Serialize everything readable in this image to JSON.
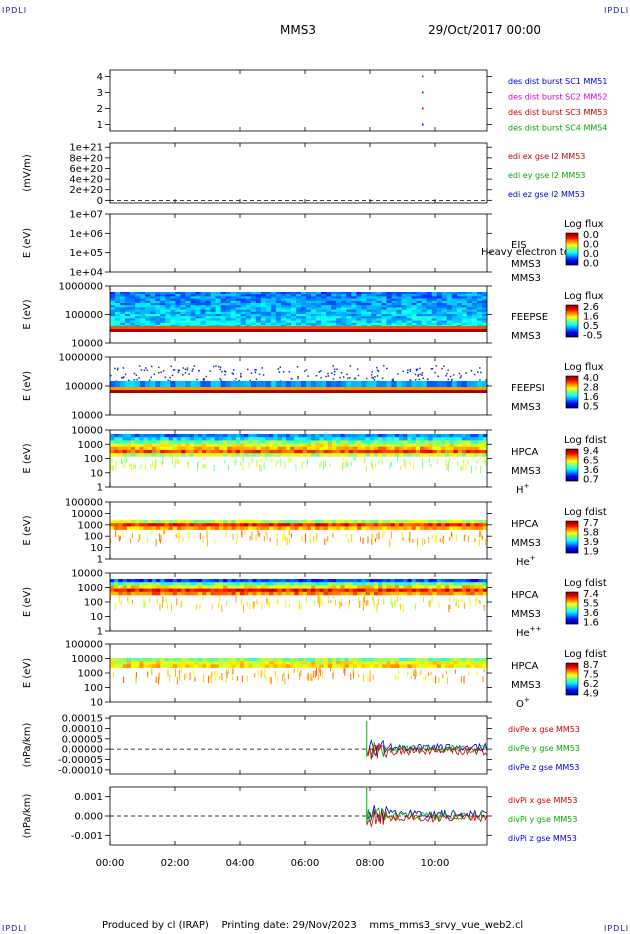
{
  "page": {
    "corner_label": "IPDLI",
    "title_left": "MMS3",
    "title_right": "29/Oct/2017 00:00",
    "footer_left": "Produced by cl (IRAP)",
    "footer_date": "Printing date: 29/Nov/2023",
    "footer_file": "mms_mms3_srvy_vue_web2.cl"
  },
  "time_axis": {
    "ticks": [
      {
        "hour": 0,
        "label": "00:00"
      },
      {
        "hour": 2,
        "label": "02:00"
      },
      {
        "hour": 4,
        "label": "04:00"
      },
      {
        "hour": 6,
        "label": "06:00"
      },
      {
        "hour": 8,
        "label": "08:00"
      },
      {
        "hour": 10,
        "label": "10:00"
      }
    ],
    "range_hours": [
      0,
      11.6
    ]
  },
  "chart_data": [
    {
      "type": "scatter",
      "panel": "burst",
      "y_ticks": [
        "4",
        "3",
        "2",
        "1"
      ],
      "y_values": [
        4,
        3,
        2,
        1
      ],
      "ylim": [
        0.6,
        4.4
      ],
      "legend": [
        {
          "text": "des dist burst SC1 MM51",
          "color": "#0000cc"
        },
        {
          "text": "des dist burst SC2 MM52",
          "color": "#cc00cc"
        },
        {
          "text": "des dist burst SC3 MM53",
          "color": "#cc0000"
        },
        {
          "text": "des dist burst SC4 MM54",
          "color": "#00aa00"
        }
      ],
      "marks": [
        {
          "hour": 9.6,
          "level": 4,
          "color": "#00aa00"
        },
        {
          "hour": 9.6,
          "level": 3,
          "color": "#cc0000"
        },
        {
          "hour": 9.6,
          "level": 2,
          "color": "#cc0000"
        },
        {
          "hour": 9.6,
          "level": 1,
          "color": "#0000cc"
        }
      ]
    },
    {
      "type": "line",
      "panel": "edi",
      "ylabel": "(mV/m)",
      "y_ticks": [
        "1e+21",
        "8e+20",
        "6e+20",
        "4e+20",
        "2e+20",
        "0"
      ],
      "y_values": [
        1e+21,
        8e+20,
        6e+20,
        4e+20,
        2e+20,
        0
      ],
      "ylim": [
        -5e+19,
        1.08e+21
      ],
      "legend": [
        {
          "text": "edi ex gse l2 MM53",
          "color": "#cc0000"
        },
        {
          "text": "edi ey gse l2 MM53",
          "color": "#00aa00"
        },
        {
          "text": "edi ez gse l2 MM53",
          "color": "#0000cc"
        }
      ],
      "zero_line": 0
    },
    {
      "type": "heatmap",
      "panel": "eis",
      "ylabel": "E (eV)",
      "y_ticks": [
        "1e+07",
        "1e+06",
        "1e+05",
        "1e+04"
      ],
      "right_labels": [
        "EIS",
        "MMS3"
      ],
      "overlay_text": "Heavy electron to",
      "colorbar_title": "Log flux",
      "colorbar_ticks": [
        "0.0",
        "0.0",
        "0.0",
        "0.0"
      ]
    },
    {
      "type": "heatmap",
      "panel": "feeps-e",
      "ylabel": "E (eV)",
      "y_ticks": [
        "1000000",
        "100000",
        "10000"
      ],
      "right_labels": [
        "FEEPSE",
        "MMS3"
      ],
      "colorbar_title": "Log flux",
      "colorbar_ticks": [
        "2.6",
        "1.6",
        "0.5",
        "-0.5"
      ]
    },
    {
      "type": "heatmap",
      "panel": "feeps-i",
      "ylabel": "E (eV)",
      "y_ticks": [
        "1000000",
        "100000",
        "10000"
      ],
      "right_labels": [
        "FEEPSI",
        "MMS3"
      ],
      "colorbar_title": "Log flux",
      "colorbar_ticks": [
        "4.0",
        "2.8",
        "1.6",
        "0.5"
      ]
    },
    {
      "type": "heatmap",
      "panel": "hpca-h",
      "ylabel": "E (eV)",
      "y_ticks": [
        "10000",
        "1000",
        "100",
        "10",
        "1"
      ],
      "right_labels": [
        "HPCA",
        "MMS3"
      ],
      "species": {
        "base": "H",
        "charge": "+"
      },
      "colorbar_title": "Log fdist",
      "colorbar_ticks": [
        "9.4",
        "6.5",
        "3.6",
        "0.7"
      ]
    },
    {
      "type": "heatmap",
      "panel": "hpca-he",
      "ylabel": "E (eV)",
      "y_ticks": [
        "100000",
        "10000",
        "1000",
        "100",
        "10",
        "1"
      ],
      "right_labels": [
        "HPCA",
        "MMS3"
      ],
      "species": {
        "base": "He",
        "charge": "+"
      },
      "colorbar_title": "Log fdist",
      "colorbar_ticks": [
        "7.7",
        "5.8",
        "3.9",
        "1.9"
      ]
    },
    {
      "type": "heatmap",
      "panel": "hpca-he2",
      "ylabel": "E (eV)",
      "y_ticks": [
        "10000",
        "1000",
        "100",
        "10",
        "1"
      ],
      "right_labels": [
        "HPCA",
        "MMS3"
      ],
      "species": {
        "base": "He",
        "charge": "++"
      },
      "colorbar_title": "Log fdist",
      "colorbar_ticks": [
        "7.4",
        "5.5",
        "3.6",
        "1.6"
      ]
    },
    {
      "type": "heatmap",
      "panel": "hpca-o",
      "ylabel": "E (eV)",
      "y_ticks": [
        "100000",
        "10000",
        "1000",
        "100",
        "10"
      ],
      "right_labels": [
        "HPCA",
        "MMS3"
      ],
      "species": {
        "base": "O",
        "charge": "+"
      },
      "colorbar_title": "Log fdist",
      "colorbar_ticks": [
        "8.7",
        "7.5",
        "6.2",
        "4.9"
      ]
    },
    {
      "type": "line",
      "panel": "divpe",
      "ylabel": "(nPa/km)",
      "y_ticks": [
        "0.00015",
        "0.00010",
        "0.00005",
        "0.00000",
        "-0.00005",
        "-0.00010"
      ],
      "y_values": [
        0.00015,
        0.0001,
        5e-05,
        0,
        -5e-05,
        -0.0001
      ],
      "ylim": [
        -0.00012,
        0.00016
      ],
      "legend": [
        {
          "text": "divPe x gse MM53",
          "color": "#cc0000"
        },
        {
          "text": "divPe y gse MM53",
          "color": "#00aa00"
        },
        {
          "text": "divPe z gse MM53",
          "color": "#0000cc"
        }
      ],
      "data_start_hour": 7.9,
      "zero_line": 0
    },
    {
      "type": "line",
      "panel": "divpi",
      "ylabel": "(nPa/km)",
      "y_ticks": [
        "0.001",
        "0.000",
        "-0.001"
      ],
      "y_values": [
        0.001,
        0,
        -0.001
      ],
      "ylim": [
        -0.0015,
        0.0015
      ],
      "legend": [
        {
          "text": "divPi x gse MM53",
          "color": "#cc0000"
        },
        {
          "text": "divPi y gse MM53",
          "color": "#00aa00"
        },
        {
          "text": "divPi z gse MM53",
          "color": "#0000cc"
        }
      ],
      "data_start_hour": 7.9,
      "zero_line": 0
    }
  ]
}
